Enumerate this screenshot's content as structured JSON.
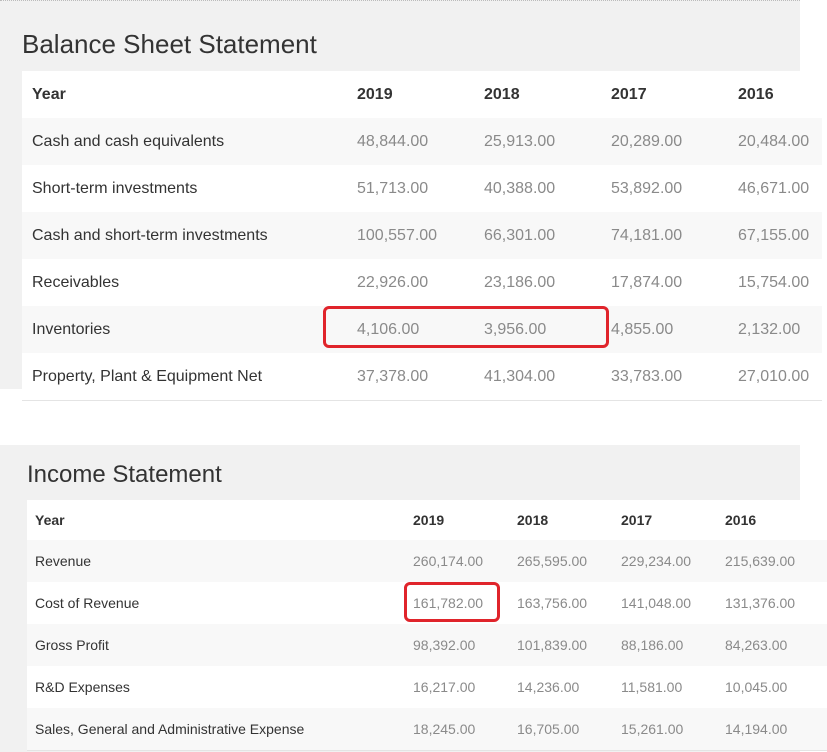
{
  "balance_sheet": {
    "title": "Balance Sheet Statement",
    "header": [
      "Year",
      "2019",
      "2018",
      "2017",
      "2016"
    ],
    "rows": [
      [
        "Cash and cash equivalents",
        "48,844.00",
        "25,913.00",
        "20,289.00",
        "20,484.00"
      ],
      [
        "Short-term investments",
        "51,713.00",
        "40,388.00",
        "53,892.00",
        "46,671.00"
      ],
      [
        "Cash and short-term investments",
        "100,557.00",
        "66,301.00",
        "74,181.00",
        "67,155.00"
      ],
      [
        "Receivables",
        "22,926.00",
        "23,186.00",
        "17,874.00",
        "15,754.00"
      ],
      [
        "Inventories",
        "4,106.00",
        "3,956.00",
        "4,855.00",
        "2,132.00"
      ],
      [
        "Property, Plant & Equipment Net",
        "37,378.00",
        "41,304.00",
        "33,783.00",
        "27,010.00"
      ]
    ]
  },
  "income_statement": {
    "title": "Income Statement",
    "header": [
      "Year",
      "2019",
      "2018",
      "2017",
      "2016"
    ],
    "rows": [
      [
        "Revenue",
        "260,174.00",
        "265,595.00",
        "229,234.00",
        "215,639.00"
      ],
      [
        "Cost of Revenue",
        "161,782.00",
        "163,756.00",
        "141,048.00",
        "131,376.00"
      ],
      [
        "Gross Profit",
        "98,392.00",
        "101,839.00",
        "88,186.00",
        "84,263.00"
      ],
      [
        "R&D Expenses",
        "16,217.00",
        "14,236.00",
        "11,581.00",
        "10,045.00"
      ],
      [
        "Sales, General and Administrative Expense",
        "18,245.00",
        "16,705.00",
        "15,261.00",
        "14,194.00"
      ]
    ]
  }
}
